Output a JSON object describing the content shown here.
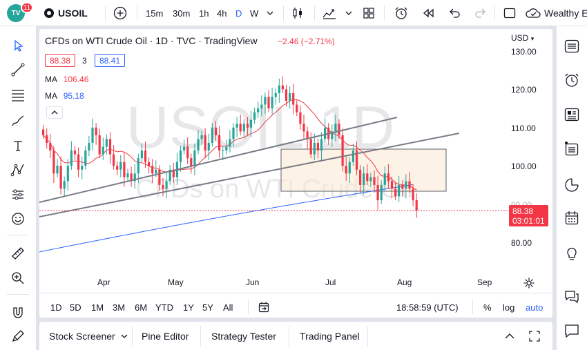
{
  "topbar": {
    "logo_text": "TV",
    "notification_count": "11",
    "symbol": "USOIL",
    "intervals": [
      "15m",
      "30m",
      "1h",
      "4h",
      "D",
      "W"
    ],
    "active_interval": "D",
    "account": "Wealthy E"
  },
  "chart": {
    "title": "CFDs on WTI Crude Oil · 1D · TVC · TradingView",
    "change": "−2.46 (−2.71%)",
    "bid": "88.38",
    "spread": "3",
    "ask": "88.41",
    "ma1_label": "MA",
    "ma1_value": "106.46",
    "ma2_label": "MA",
    "ma2_value": "95.18",
    "currency": "USD",
    "watermark_symbol": "USOIL 1D",
    "watermark_name": "CFDs on WTI Crude Oil",
    "last_price": "88.38",
    "countdown": "03:01:01",
    "time": "18:58:59 (UTC)",
    "pct_label": "%",
    "log_label": "log",
    "auto_label": "auto",
    "colors": {
      "up": "#26a69a",
      "down": "#f23645",
      "ma_red": "#f23645",
      "ma_blue": "#2962ff",
      "box_fill": "#fbe9d5"
    }
  },
  "ranges": [
    "1D",
    "5D",
    "1M",
    "3M",
    "6M",
    "YTD",
    "1Y",
    "5Y",
    "All"
  ],
  "bottom_tabs": [
    "Stock Screener",
    "Pine Editor",
    "Strategy Tester",
    "Trading Panel"
  ],
  "chart_data": {
    "type": "candlestick",
    "y_ticks": [
      "130.00",
      "120.00",
      "110.00",
      "100.00",
      "90.00",
      "80.00"
    ],
    "x_ticks": [
      "Apr",
      "May",
      "Jun",
      "Jul",
      "Aug",
      "Sep"
    ],
    "ylim": [
      76,
      132
    ],
    "closes": [
      108,
      106,
      104,
      98,
      100,
      94,
      96,
      100,
      104,
      103,
      99,
      100,
      104,
      106,
      110,
      108,
      103,
      105,
      107,
      103,
      100,
      99,
      101,
      97,
      98,
      96,
      98,
      102,
      104,
      101,
      100,
      98,
      99,
      95,
      94,
      96,
      99,
      97,
      101,
      104,
      105,
      102,
      100,
      104,
      107,
      108,
      104,
      106,
      110,
      108,
      104,
      104,
      105,
      107,
      110,
      111,
      109,
      111,
      110,
      112,
      114,
      115,
      116,
      118,
      115,
      118,
      119,
      121,
      120,
      117,
      119,
      116,
      114,
      111,
      109,
      107,
      103,
      106,
      104,
      107,
      110,
      107,
      109,
      111,
      108,
      100,
      98,
      101,
      104,
      99,
      95,
      98,
      96,
      97,
      95,
      91,
      95,
      98,
      96,
      94,
      92,
      95,
      94,
      96,
      94,
      91,
      88.38
    ]
  }
}
